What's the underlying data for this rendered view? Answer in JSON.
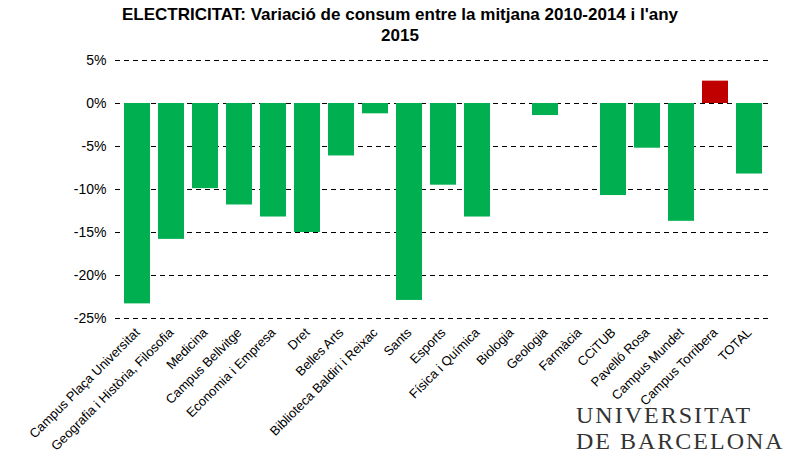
{
  "chart_data": {
    "type": "bar",
    "title": "ELECTRICITAT: Variació de consum entre la mitjana 2010-2014 i l'any 2015",
    "categories": [
      "Campus Plaça Universitat",
      "Geografia i Història, Filosofia",
      "Medicina",
      "Campus Bellvitge",
      "Economia i Empresa",
      "Dret",
      "Belles Arts",
      "Biblioteca Baldiri i Reixac",
      "Sants",
      "Esports",
      "Física i Química",
      "Biologia",
      "Geologia",
      "Farmàcia",
      "CCiTUB",
      "Pavelló Rosa",
      "Campus Mundet",
      "Campus Torribera",
      "TOTAL"
    ],
    "values": [
      -23.3,
      -15.8,
      -9.9,
      -11.8,
      -13.2,
      -15.0,
      -6.1,
      -1.2,
      -22.9,
      -9.5,
      -13.2,
      0,
      -1.4,
      0,
      -10.7,
      -5.2,
      -13.7,
      2.6,
      -8.2
    ],
    "colors": [
      "#00b050",
      "#00b050",
      "#00b050",
      "#00b050",
      "#00b050",
      "#00b050",
      "#00b050",
      "#00b050",
      "#00b050",
      "#00b050",
      "#00b050",
      "#00b050",
      "#00b050",
      "#00b050",
      "#00b050",
      "#00b050",
      "#00b050",
      "#c00000",
      "#00b050"
    ],
    "ylim": [
      -25,
      5
    ],
    "yticks": [
      {
        "value": 5,
        "label": "5%"
      },
      {
        "value": 0,
        "label": "0%"
      },
      {
        "value": -5,
        "label": "-5%"
      },
      {
        "value": -10,
        "label": "-10%"
      },
      {
        "value": -15,
        "label": "-15%"
      },
      {
        "value": -20,
        "label": "-20%"
      },
      {
        "value": -25,
        "label": "-25%"
      }
    ],
    "grid": true,
    "annotations": [
      "UNIVERSITAT DE BARCELONA"
    ]
  }
}
